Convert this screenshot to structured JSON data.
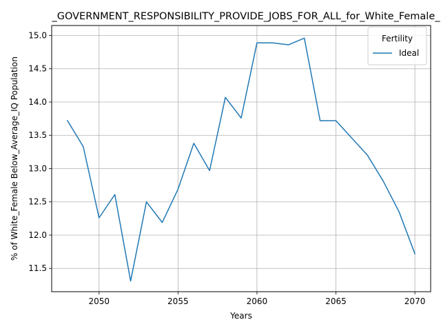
{
  "chart_data": {
    "type": "line",
    "title": "_GOVERNMENT_RESPONSIBILITY_PROVIDE_JOBS_FOR_ALL_for_White_Female_",
    "xlabel": "Years",
    "ylabel": "% of White_Female Below_Average_IQ Population",
    "xlim": [
      2047,
      2071
    ],
    "ylim": [
      11.15,
      15.15
    ],
    "xticks": [
      2050,
      2055,
      2060,
      2065,
      2070
    ],
    "yticks": [
      11.5,
      12.0,
      12.5,
      13.0,
      13.5,
      14.0,
      14.5,
      15.0
    ],
    "ytick_labels": [
      "11.5",
      "12.0",
      "12.5",
      "13.0",
      "13.5",
      "14.0",
      "14.5",
      "15.0"
    ],
    "grid": true,
    "legend": {
      "title": "Fertility",
      "placement": "top-right"
    },
    "series": [
      {
        "name": "Ideal",
        "color": "#1f77b4",
        "x": [
          2048,
          2049,
          2050,
          2051,
          2052,
          2053,
          2054,
          2055,
          2056,
          2057,
          2058,
          2059,
          2060,
          2061,
          2062,
          2063,
          2064,
          2065,
          2066,
          2067,
          2068,
          2069,
          2070
        ],
        "y": [
          13.72,
          13.33,
          12.26,
          12.61,
          11.31,
          12.5,
          12.19,
          12.69,
          13.38,
          12.97,
          14.07,
          13.76,
          14.89,
          14.89,
          14.86,
          14.96,
          13.72,
          13.72,
          13.46,
          13.2,
          12.81,
          12.35,
          11.72
        ]
      }
    ]
  }
}
